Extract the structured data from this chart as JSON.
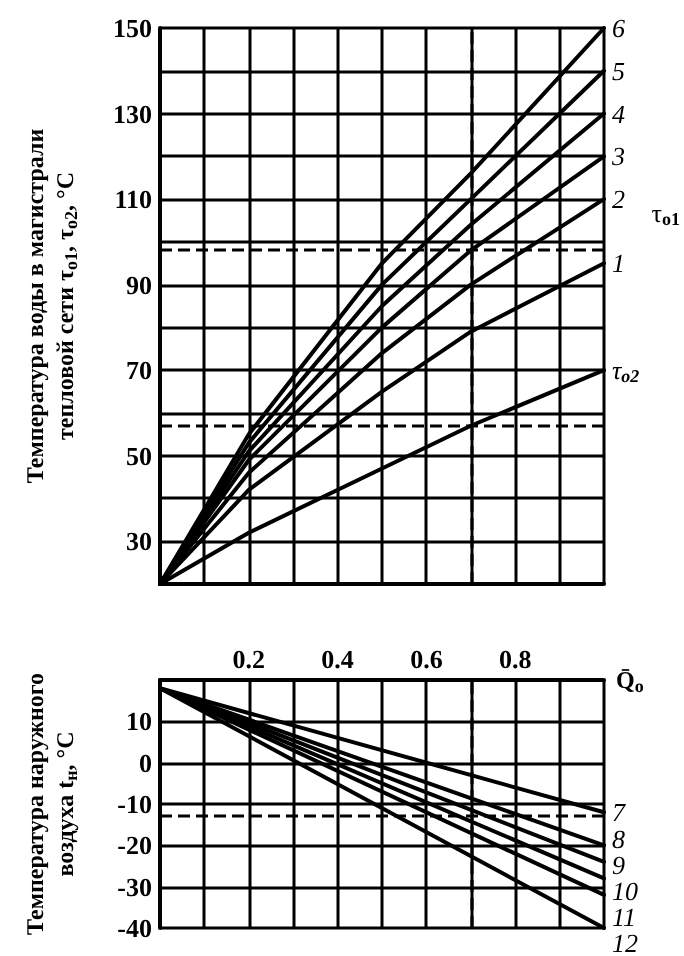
{
  "chart_data": [
    {
      "type": "line",
      "ylabel": "Температура воды в магистрали\nтепловой сети τ$_{o1}$, τ$_{o2}$, °C",
      "xlim": [
        0,
        1
      ],
      "xticks": [
        {
          "value": 0,
          "label": null
        },
        {
          "value": 0.1,
          "label": null
        },
        {
          "value": 0.2,
          "label": null
        },
        {
          "value": 0.3,
          "label": null
        },
        {
          "value": 0.4,
          "label": null
        },
        {
          "value": 0.5,
          "label": null
        },
        {
          "value": 0.6,
          "label": null
        },
        {
          "value": 0.7,
          "label": null
        },
        {
          "value": 0.8,
          "label": null
        },
        {
          "value": 0.9,
          "label": null
        },
        {
          "value": 1,
          "label": null
        }
      ],
      "ylim": [
        20,
        150
      ],
      "yticks": [
        {
          "value": 20,
          "label": null
        },
        30,
        {
          "value": 40,
          "label": null
        },
        50,
        {
          "value": 60,
          "label": null
        },
        70,
        {
          "value": 80,
          "label": null
        },
        90,
        {
          "value": 100,
          "label": null
        },
        110,
        {
          "value": 120,
          "label": null
        },
        130,
        {
          "value": 140,
          "label": null
        },
        150
      ],
      "x": [
        0,
        0.2,
        0.5,
        0.7,
        1
      ],
      "series": [
        {
          "name": "6",
          "color": "#000000",
          "values": [
            20,
            55,
            95,
            116,
            150
          ]
        },
        {
          "name": "5",
          "color": "#000000",
          "values": [
            20,
            53,
            90,
            110,
            140
          ]
        },
        {
          "name": "4",
          "color": "#000000",
          "values": [
            20,
            51,
            85,
            104,
            130
          ]
        },
        {
          "name": "3",
          "color": "#000000",
          "values": [
            20,
            49,
            80,
            98,
            120
          ]
        },
        {
          "name": "2",
          "color": "#000000",
          "values": [
            20,
            46,
            74,
            90,
            110
          ]
        },
        {
          "name": "1",
          "color": "#000000",
          "values": [
            20,
            42,
            65,
            79,
            95
          ]
        },
        {
          "name": "τ$_{o2}$",
          "color": "#000000",
          "values": [
            20,
            32,
            47,
            57,
            70
          ]
        }
      ],
      "ref_lines": [
        {
          "axis": "y",
          "value": 98,
          "line_style": "dashed"
        },
        {
          "axis": "y",
          "value": 57,
          "line_style": "dashed"
        },
        {
          "axis": "x",
          "value": 0.7,
          "line_style": "dashed"
        }
      ],
      "annotations": [
        "τ$_{o1}$"
      ],
      "grid": true,
      "legend": false,
      "marker": "none",
      "line_style": "solid",
      "tick_labels": "y"
    },
    {
      "type": "line",
      "ylabel": "Температура наружного\nвоздуха t$_{н}$, °C",
      "xlabel": "Q̄$_{o}$",
      "xlim": [
        0,
        1
      ],
      "xticks": [
        {
          "value": 0,
          "label": null
        },
        {
          "value": 0.1,
          "label": null
        },
        0.2,
        {
          "value": 0.3,
          "label": null
        },
        0.4,
        {
          "value": 0.5,
          "label": null
        },
        0.6,
        {
          "value": 0.7,
          "label": null
        },
        0.8,
        {
          "value": 0.9,
          "label": null
        },
        {
          "value": 1,
          "label": null
        }
      ],
      "ylim": [
        -40,
        20
      ],
      "yticks": [
        -40,
        -30,
        -20,
        -10,
        0,
        10,
        {
          "value": 20,
          "label": null
        }
      ],
      "x": [
        0,
        1
      ],
      "series": [
        {
          "name": "7",
          "color": "#000000",
          "values": [
            18,
            -12
          ]
        },
        {
          "name": "8",
          "color": "#000000",
          "values": [
            18,
            -20
          ]
        },
        {
          "name": "9",
          "color": "#000000",
          "values": [
            18,
            -24
          ]
        },
        {
          "name": "10",
          "color": "#000000",
          "values": [
            18,
            -28
          ]
        },
        {
          "name": "11",
          "color": "#000000",
          "values": [
            18,
            -32
          ]
        },
        {
          "name": "12",
          "color": "#000000",
          "values": [
            18,
            -40
          ]
        }
      ],
      "ref_lines": [
        {
          "axis": "y",
          "value": -13,
          "line_style": "dashed"
        },
        {
          "axis": "x",
          "value": 0.7,
          "line_style": "dashed"
        }
      ],
      "grid": true,
      "legend": false,
      "marker": "none",
      "line_style": "solid"
    }
  ]
}
